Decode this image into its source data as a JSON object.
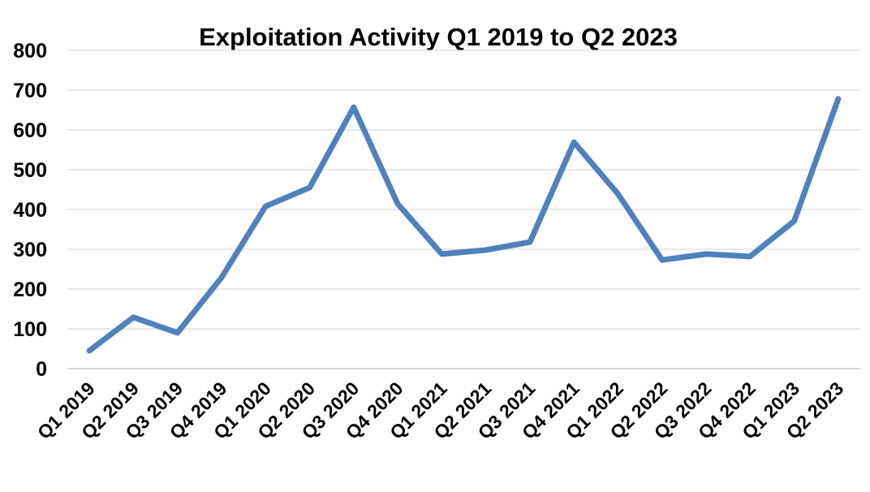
{
  "chart_data": {
    "type": "line",
    "title": "Exploitation Activity Q1 2019 to Q2 2023",
    "xlabel": "",
    "ylabel": "",
    "ylim": [
      0,
      800
    ],
    "yticks": [
      0,
      100,
      200,
      300,
      400,
      500,
      600,
      700,
      800
    ],
    "grid": true,
    "legend": "none",
    "categories": [
      "Q1 2019",
      "Q2 2019",
      "Q3 2019",
      "Q4 2019",
      "Q1 2020",
      "Q2 2020",
      "Q3 2020",
      "Q4 2020",
      "Q1 2021",
      "Q2 2021",
      "Q3 2021",
      "Q4 2021",
      "Q1 2022",
      "Q2 2022",
      "Q3 2022",
      "Q4 2022",
      "Q1 2023",
      "Q2 2023"
    ],
    "series": [
      {
        "name": "Exploitation Activity",
        "color": "#4F81BD",
        "values": [
          45,
          129,
          90,
          229,
          408,
          455,
          657,
          414,
          288,
          298,
          318,
          569,
          439,
          273,
          288,
          282,
          371,
          678
        ]
      }
    ]
  }
}
